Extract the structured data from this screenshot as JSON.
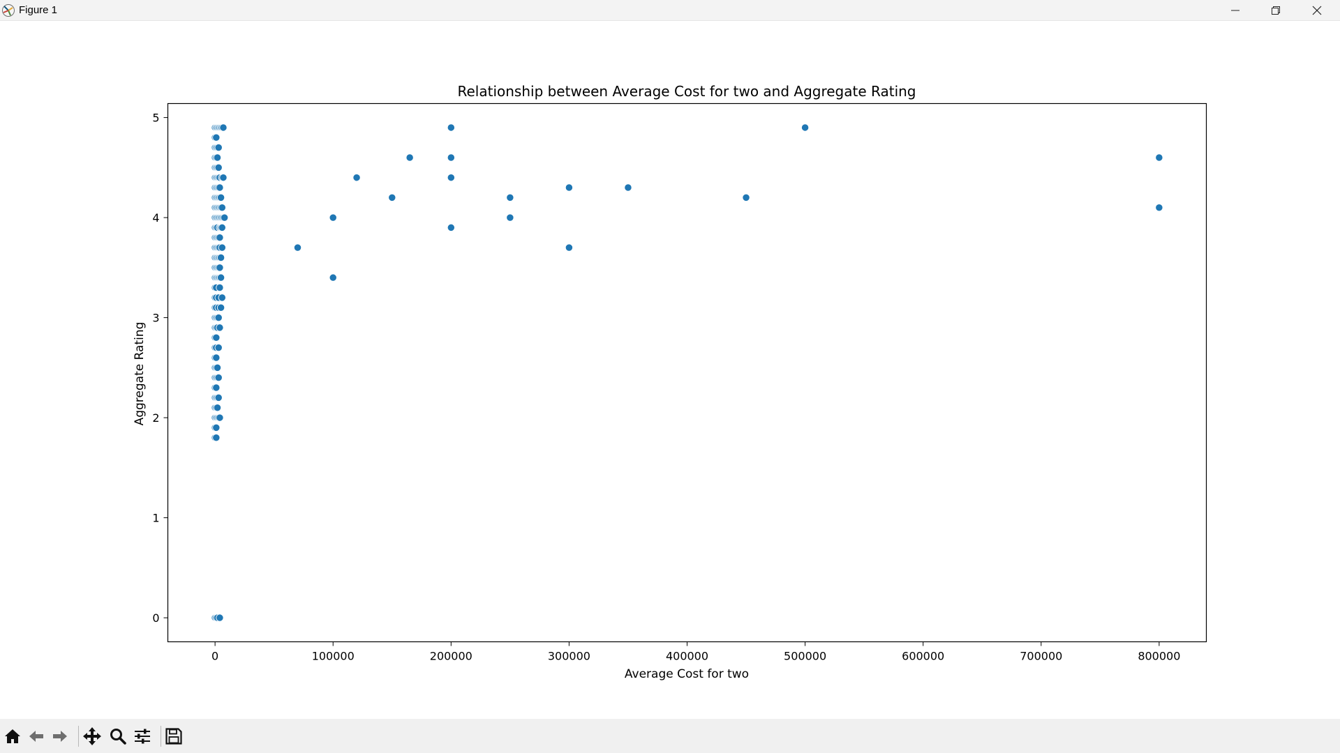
{
  "window": {
    "title": "Figure 1",
    "controls": [
      "minimize",
      "restore",
      "close"
    ]
  },
  "toolbar": {
    "buttons": [
      {
        "name": "home",
        "icon": "home-icon"
      },
      {
        "name": "back",
        "icon": "arrow-left-icon"
      },
      {
        "name": "forward",
        "icon": "arrow-right-icon"
      },
      {
        "name": "pan",
        "icon": "move-icon"
      },
      {
        "name": "zoom",
        "icon": "magnifier-icon"
      },
      {
        "name": "configure-subplots",
        "icon": "sliders-icon"
      },
      {
        "name": "save",
        "icon": "floppy-disk-icon"
      }
    ]
  },
  "chart_data": {
    "type": "scatter",
    "title": "Relationship between Average Cost for two and Aggregate Rating",
    "xlabel": "Average Cost for two",
    "ylabel": "Aggregate Rating",
    "xlim": [
      -40000,
      840000
    ],
    "ylim": [
      -0.24,
      5.14
    ],
    "xticks": [
      0,
      100000,
      200000,
      300000,
      400000,
      500000,
      600000,
      700000,
      800000
    ],
    "yticks": [
      0,
      1,
      2,
      3,
      4,
      5
    ],
    "grid": false,
    "legend": "none",
    "marker_color": "#1f77b4",
    "points": [
      [
        0,
        0
      ],
      [
        1000,
        0
      ],
      [
        2000,
        0
      ],
      [
        4000,
        0
      ],
      [
        0,
        1.8
      ],
      [
        1000,
        1.8
      ],
      [
        0,
        1.9
      ],
      [
        1000,
        1.9
      ],
      [
        0,
        2.0
      ],
      [
        1000,
        2.0
      ],
      [
        2000,
        2.0
      ],
      [
        3000,
        2.0
      ],
      [
        4000,
        2.0
      ],
      [
        0,
        2.1
      ],
      [
        1000,
        2.1
      ],
      [
        2000,
        2.1
      ],
      [
        0,
        2.2
      ],
      [
        1000,
        2.2
      ],
      [
        2000,
        2.2
      ],
      [
        3000,
        2.2
      ],
      [
        0,
        2.3
      ],
      [
        1000,
        2.3
      ],
      [
        0,
        2.4
      ],
      [
        1000,
        2.4
      ],
      [
        2000,
        2.4
      ],
      [
        3000,
        2.4
      ],
      [
        0,
        2.5
      ],
      [
        1000,
        2.5
      ],
      [
        2000,
        2.5
      ],
      [
        0,
        2.6
      ],
      [
        1000,
        2.6
      ],
      [
        0,
        2.7
      ],
      [
        1000,
        2.7
      ],
      [
        3000,
        2.7
      ],
      [
        0,
        2.8
      ],
      [
        1000,
        2.8
      ],
      [
        0,
        2.9
      ],
      [
        1000,
        2.9
      ],
      [
        2000,
        2.9
      ],
      [
        4000,
        2.9
      ],
      [
        0,
        3.0
      ],
      [
        1000,
        3.0
      ],
      [
        2000,
        3.0
      ],
      [
        3000,
        3.0
      ],
      [
        0,
        3.1
      ],
      [
        1000,
        3.1
      ],
      [
        3000,
        3.1
      ],
      [
        5000,
        3.1
      ],
      [
        0,
        3.2
      ],
      [
        1000,
        3.2
      ],
      [
        3000,
        3.2
      ],
      [
        6000,
        3.2
      ],
      [
        0,
        3.3
      ],
      [
        1000,
        3.3
      ],
      [
        4000,
        3.3
      ],
      [
        0,
        3.4
      ],
      [
        1000,
        3.4
      ],
      [
        2000,
        3.4
      ],
      [
        3000,
        3.4
      ],
      [
        4000,
        3.4
      ],
      [
        5000,
        3.4
      ],
      [
        0,
        3.5
      ],
      [
        1000,
        3.5
      ],
      [
        2000,
        3.5
      ],
      [
        3000,
        3.5
      ],
      [
        4000,
        3.5
      ],
      [
        0,
        3.6
      ],
      [
        1000,
        3.6
      ],
      [
        2000,
        3.6
      ],
      [
        3000,
        3.6
      ],
      [
        4000,
        3.6
      ],
      [
        5000,
        3.6
      ],
      [
        0,
        3.7
      ],
      [
        1000,
        3.7
      ],
      [
        2000,
        3.7
      ],
      [
        3000,
        3.7
      ],
      [
        4000,
        3.7
      ],
      [
        6000,
        3.7
      ],
      [
        0,
        3.8
      ],
      [
        1000,
        3.8
      ],
      [
        2000,
        3.8
      ],
      [
        3000,
        3.8
      ],
      [
        4000,
        3.8
      ],
      [
        0,
        3.9
      ],
      [
        1000,
        3.9
      ],
      [
        2000,
        3.9
      ],
      [
        4000,
        3.9
      ],
      [
        5000,
        3.9
      ],
      [
        6000,
        3.9
      ],
      [
        0,
        4.0
      ],
      [
        1000,
        4.0
      ],
      [
        2000,
        4.0
      ],
      [
        3000,
        4.0
      ],
      [
        4000,
        4.0
      ],
      [
        5000,
        4.0
      ],
      [
        6000,
        4.0
      ],
      [
        7000,
        4.0
      ],
      [
        8000,
        4.0
      ],
      [
        0,
        4.1
      ],
      [
        1000,
        4.1
      ],
      [
        2000,
        4.1
      ],
      [
        3000,
        4.1
      ],
      [
        4000,
        4.1
      ],
      [
        5000,
        4.1
      ],
      [
        6000,
        4.1
      ],
      [
        0,
        4.2
      ],
      [
        1000,
        4.2
      ],
      [
        2000,
        4.2
      ],
      [
        3000,
        4.2
      ],
      [
        4000,
        4.2
      ],
      [
        5000,
        4.2
      ],
      [
        0,
        4.3
      ],
      [
        1000,
        4.3
      ],
      [
        2000,
        4.3
      ],
      [
        3000,
        4.3
      ],
      [
        4000,
        4.3
      ],
      [
        0,
        4.4
      ],
      [
        1000,
        4.4
      ],
      [
        2000,
        4.4
      ],
      [
        3000,
        4.4
      ],
      [
        4000,
        4.4
      ],
      [
        6000,
        4.4
      ],
      [
        7000,
        4.4
      ],
      [
        0,
        4.5
      ],
      [
        1000,
        4.5
      ],
      [
        2000,
        4.5
      ],
      [
        3000,
        4.5
      ],
      [
        0,
        4.6
      ],
      [
        1000,
        4.6
      ],
      [
        2000,
        4.6
      ],
      [
        0,
        4.7
      ],
      [
        1000,
        4.7
      ],
      [
        2000,
        4.7
      ],
      [
        3000,
        4.7
      ],
      [
        0,
        4.8
      ],
      [
        1000,
        4.8
      ],
      [
        0,
        4.9
      ],
      [
        1000,
        4.9
      ],
      [
        2000,
        4.9
      ],
      [
        3000,
        4.9
      ],
      [
        4000,
        4.9
      ],
      [
        5000,
        4.9
      ],
      [
        6000,
        4.9
      ],
      [
        7000,
        4.9
      ],
      [
        70000,
        3.7
      ],
      [
        100000,
        3.4
      ],
      [
        100000,
        4.0
      ],
      [
        120000,
        4.4
      ],
      [
        150000,
        4.2
      ],
      [
        165000,
        4.6
      ],
      [
        200000,
        3.9
      ],
      [
        200000,
        4.4
      ],
      [
        200000,
        4.6
      ],
      [
        200000,
        4.9
      ],
      [
        250000,
        4.0
      ],
      [
        250000,
        4.2
      ],
      [
        300000,
        3.7
      ],
      [
        300000,
        4.3
      ],
      [
        350000,
        4.3
      ],
      [
        450000,
        4.2
      ],
      [
        500000,
        4.9
      ],
      [
        800000,
        4.1
      ],
      [
        800000,
        4.6
      ]
    ]
  }
}
